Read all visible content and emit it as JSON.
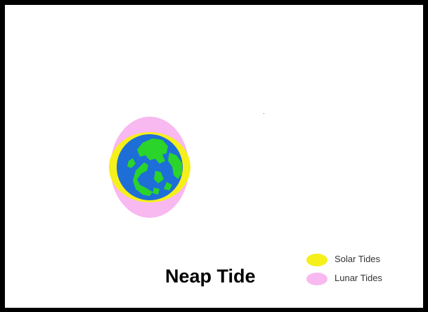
{
  "title": "Neap Tide",
  "legend": {
    "items": [
      {
        "label": "Solar Tides",
        "color": "#f5f01a"
      },
      {
        "label": "Lunar Tides",
        "color": "#f8b8f0"
      }
    ]
  },
  "colors": {
    "frame": "#000000",
    "background": "#ffffff",
    "solar_bulge": "#f5f01a",
    "lunar_bulge": "#f8b8f0",
    "ocean": "#1e6ed8",
    "land": "#2ad42a"
  }
}
